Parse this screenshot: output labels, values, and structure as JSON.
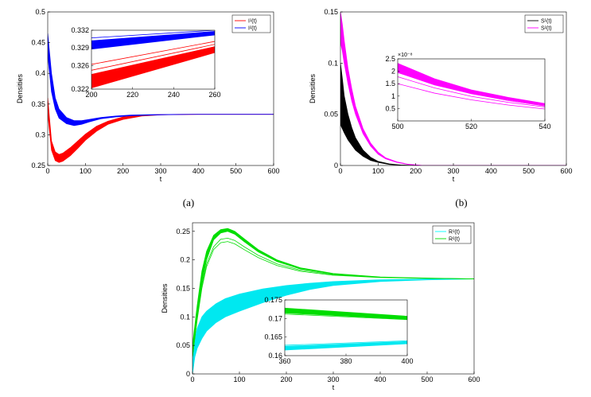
{
  "chart_data": [
    {
      "id": "a",
      "type": "line",
      "caption": "(a)",
      "xlabel": "t",
      "ylabel": "Densities",
      "xlim": [
        0,
        600
      ],
      "ylim": [
        0.25,
        0.5
      ],
      "xticks": [
        "0",
        "100",
        "200",
        "300",
        "400",
        "500",
        "600"
      ],
      "yticks": [
        "0.25",
        "0.3",
        "0.35",
        "0.4",
        "0.45",
        "0.5"
      ],
      "legend": {
        "placement": "top-right",
        "entries": [
          {
            "label": "I¹(t)",
            "color": "#ff0000"
          },
          {
            "label": "I²(t)",
            "color": "#0000ff"
          }
        ]
      },
      "series": [
        {
          "name": "I¹(t)",
          "color": "#ff0000",
          "band": true,
          "x": [
            0,
            10,
            20,
            30,
            40,
            60,
            80,
            100,
            130,
            160,
            200,
            250,
            300,
            350,
            400,
            450,
            600
          ],
          "lower": [
            0.335,
            0.275,
            0.258,
            0.255,
            0.257,
            0.266,
            0.278,
            0.291,
            0.306,
            0.317,
            0.325,
            0.3305,
            0.3325,
            0.333,
            0.3333,
            0.3333,
            0.3333
          ],
          "upper": [
            0.36,
            0.29,
            0.272,
            0.268,
            0.27,
            0.279,
            0.29,
            0.301,
            0.314,
            0.322,
            0.329,
            0.332,
            0.3328,
            0.3332,
            0.3333,
            0.3333,
            0.3333
          ]
        },
        {
          "name": "I²(t)",
          "color": "#0000ff",
          "band": true,
          "x": [
            0,
            10,
            20,
            30,
            50,
            70,
            90,
            110,
            140,
            180,
            220,
            270,
            320,
            400,
            450,
            600
          ],
          "lower": [
            0.43,
            0.37,
            0.342,
            0.327,
            0.318,
            0.315,
            0.317,
            0.321,
            0.326,
            0.329,
            0.331,
            0.332,
            0.3328,
            0.3333,
            0.3333,
            0.3333
          ],
          "upper": [
            0.465,
            0.4,
            0.36,
            0.342,
            0.328,
            0.323,
            0.323,
            0.325,
            0.328,
            0.3305,
            0.332,
            0.3327,
            0.333,
            0.3333,
            0.3333,
            0.3333
          ]
        }
      ],
      "inset": {
        "xlim": [
          200,
          260
        ],
        "ylim": [
          0.322,
          0.332
        ],
        "xticks": [
          "200",
          "220",
          "240",
          "260"
        ],
        "yticks": [
          "0.322",
          "0.326",
          "0.329",
          "0.332"
        ],
        "ytick_values": [
          0.322,
          0.326,
          0.329,
          0.332
        ],
        "series": [
          {
            "color": "#0000ff",
            "x": [
              200,
              260
            ],
            "lower": [
              0.3288,
              0.3312
            ],
            "upper": [
              0.3302,
              0.3318
            ],
            "lines": [
              {
                "x": [
                  200,
                  260
                ],
                "y": [
                  0.3307,
                  0.332
                ]
              }
            ]
          },
          {
            "color": "#ff0000",
            "x": [
              200,
              260
            ],
            "lower": [
              0.3222,
              0.3282
            ],
            "upper": [
              0.3245,
              0.3292
            ],
            "lines": [
              {
                "x": [
                  200,
                  260
                ],
                "y": [
                  0.3252,
                  0.3296
                ]
              },
              {
                "x": [
                  200,
                  260
                ],
                "y": [
                  0.3262,
                  0.3301
                ]
              }
            ]
          }
        ]
      }
    },
    {
      "id": "b",
      "type": "line",
      "caption": "(b)",
      "xlabel": "t",
      "ylabel": "Densities",
      "xlim": [
        0,
        600
      ],
      "ylim": [
        0,
        0.15
      ],
      "xticks": [
        "0",
        "100",
        "200",
        "300",
        "400",
        "500",
        "600"
      ],
      "yticks": [
        "0",
        "0.05",
        "0.1",
        "0.15"
      ],
      "ytick_values": [
        0,
        0.05,
        0.1,
        0.15
      ],
      "legend": {
        "placement": "top-right",
        "entries": [
          {
            "label": "S¹(t)",
            "color": "#000000"
          },
          {
            "label": "S²(t)",
            "color": "#ff00ff"
          }
        ]
      },
      "series": [
        {
          "name": "S¹(t)",
          "color": "#000000",
          "band": true,
          "x": [
            0,
            5,
            10,
            20,
            30,
            40,
            60,
            80,
            100,
            130,
            160,
            200,
            600
          ],
          "lower": [
            0.04,
            0.036,
            0.032,
            0.025,
            0.02,
            0.015,
            0.009,
            0.005,
            0.003,
            0.001,
            0.0003,
            0,
            0
          ],
          "upper": [
            0.1,
            0.085,
            0.068,
            0.05,
            0.037,
            0.027,
            0.015,
            0.008,
            0.004,
            0.0015,
            0.0005,
            0,
            0
          ]
        },
        {
          "name": "S²(t)",
          "color": "#ff00ff",
          "band": true,
          "x": [
            0,
            5,
            10,
            20,
            30,
            40,
            60,
            80,
            100,
            120,
            150,
            180,
            220,
            600
          ],
          "lower": [
            0.12,
            0.112,
            0.1,
            0.08,
            0.063,
            0.05,
            0.031,
            0.019,
            0.011,
            0.0065,
            0.003,
            0.001,
            0,
            0
          ],
          "upper": [
            0.15,
            0.138,
            0.122,
            0.095,
            0.075,
            0.058,
            0.036,
            0.022,
            0.013,
            0.0075,
            0.0035,
            0.0012,
            0,
            0
          ]
        }
      ],
      "inset": {
        "xlim": [
          500,
          540
        ],
        "ylim": [
          0,
          2.5
        ],
        "xticks": [
          "500",
          "520",
          "540"
        ],
        "yticks": [
          "0.5",
          "1",
          "1.5",
          "2",
          "2.5"
        ],
        "ytick_values": [
          0.5,
          1,
          1.5,
          2,
          2.5
        ],
        "exponent_label": "×10⁻⁸",
        "series": [
          {
            "color": "#ff00ff",
            "x": [
              500,
              510,
              520,
              530,
              540
            ],
            "lower": [
              1.95,
              1.45,
              1.1,
              0.85,
              0.62
            ],
            "upper": [
              2.32,
              1.7,
              1.25,
              0.95,
              0.7
            ],
            "lines": [
              {
                "x": [
                  500,
                  510,
                  520,
                  530,
                  540
                ],
                "y": [
                  1.5,
                  1.12,
                  0.85,
                  0.64,
                  0.48
                ]
              },
              {
                "x": [
                  500,
                  510,
                  520,
                  530,
                  540
                ],
                "y": [
                  1.78,
                  1.33,
                  0.99,
                  0.75,
                  0.56
                ]
              },
              {
                "x": [
                  500,
                  510,
                  520,
                  530,
                  540
                ],
                "y": [
                  2.0,
                  1.48,
                  1.1,
                  0.82,
                  0.6
                ]
              }
            ]
          }
        ]
      }
    },
    {
      "id": "c",
      "type": "line",
      "caption": "",
      "xlabel": "t",
      "ylabel": "Densities",
      "xlim": [
        0,
        600
      ],
      "ylim": [
        0,
        0.265
      ],
      "xticks": [
        "0",
        "100",
        "200",
        "300",
        "400",
        "500",
        "600"
      ],
      "yticks": [
        "0",
        "0.05",
        "0.1",
        "0.15",
        "0.2",
        "0.25"
      ],
      "ytick_values": [
        0,
        0.05,
        0.1,
        0.15,
        0.2,
        0.25
      ],
      "legend": {
        "placement": "top-right",
        "entries": [
          {
            "label": "R¹(t)",
            "color": "#00ffff"
          },
          {
            "label": "R²(t)",
            "color": "#00dd00"
          }
        ]
      },
      "series": [
        {
          "name": "R¹(t)",
          "color": "#00e8f0",
          "band": true,
          "x": [
            0,
            5,
            10,
            20,
            30,
            50,
            70,
            100,
            150,
            200,
            250,
            300,
            400,
            500,
            600
          ],
          "lower": [
            0,
            0.03,
            0.045,
            0.062,
            0.075,
            0.09,
            0.1,
            0.11,
            0.125,
            0.138,
            0.148,
            0.155,
            0.162,
            0.165,
            0.1665
          ],
          "upper": [
            0.02,
            0.06,
            0.08,
            0.1,
            0.11,
            0.123,
            0.132,
            0.14,
            0.149,
            0.155,
            0.159,
            0.162,
            0.165,
            0.1665,
            0.1667
          ]
        },
        {
          "name": "R²(t)",
          "color": "#00dd00",
          "band": true,
          "x": [
            0,
            10,
            20,
            30,
            45,
            60,
            75,
            90,
            110,
            140,
            180,
            230,
            300,
            400,
            500,
            600
          ],
          "lower": [
            0.03,
            0.1,
            0.16,
            0.2,
            0.235,
            0.247,
            0.25,
            0.245,
            0.232,
            0.214,
            0.197,
            0.184,
            0.175,
            0.17,
            0.168,
            0.1667
          ],
          "upper": [
            0.05,
            0.12,
            0.18,
            0.215,
            0.243,
            0.253,
            0.255,
            0.25,
            0.237,
            0.218,
            0.2,
            0.186,
            0.176,
            0.17,
            0.168,
            0.1667
          ],
          "lines": [
            {
              "x": [
                0,
                10,
                20,
                30,
                45,
                60,
                75,
                90,
                110,
                140,
                180,
                230,
                300,
                400,
                500,
                600
              ],
              "y": [
                0.03,
                0.095,
                0.15,
                0.188,
                0.218,
                0.23,
                0.232,
                0.228,
                0.218,
                0.204,
                0.19,
                0.18,
                0.173,
                0.169,
                0.1675,
                0.1667
              ]
            },
            {
              "x": [
                0,
                10,
                20,
                30,
                45,
                60,
                75,
                90,
                110,
                140,
                180,
                230,
                300,
                400,
                500,
                600
              ],
              "y": [
                0.03,
                0.098,
                0.155,
                0.193,
                0.223,
                0.236,
                0.238,
                0.234,
                0.223,
                0.208,
                0.193,
                0.182,
                0.174,
                0.1695,
                0.1677,
                0.1667
              ]
            }
          ]
        }
      ],
      "inset": {
        "xlim": [
          360,
          400
        ],
        "ylim": [
          0.16,
          0.175
        ],
        "xticks": [
          "360",
          "380",
          "400"
        ],
        "yticks": [
          "0.16",
          "0.165",
          "0.17",
          "0.175"
        ],
        "ytick_values": [
          0.16,
          0.165,
          0.17,
          0.175
        ],
        "series": [
          {
            "color": "#00dd00",
            "x": [
              360,
              400
            ],
            "lower": [
              0.1715,
              0.1698
            ],
            "upper": [
              0.1728,
              0.1706
            ],
            "lines": [
              {
                "x": [
                  360,
                  400
                ],
                "y": [
                  0.1712,
                  0.1697
                ]
              },
              {
                "x": [
                  360,
                  400
                ],
                "y": [
                  0.1718,
                  0.1701
                ]
              }
            ]
          },
          {
            "color": "#00e8f0",
            "x": [
              360,
              400
            ],
            "lower": [
              0.1615,
              0.1632
            ],
            "upper": [
              0.1625,
              0.1638
            ],
            "lines": [
              {
                "x": [
                  360,
                  400
                ],
                "y": [
                  0.1628,
                  0.164
                ]
              }
            ]
          }
        ]
      }
    }
  ]
}
